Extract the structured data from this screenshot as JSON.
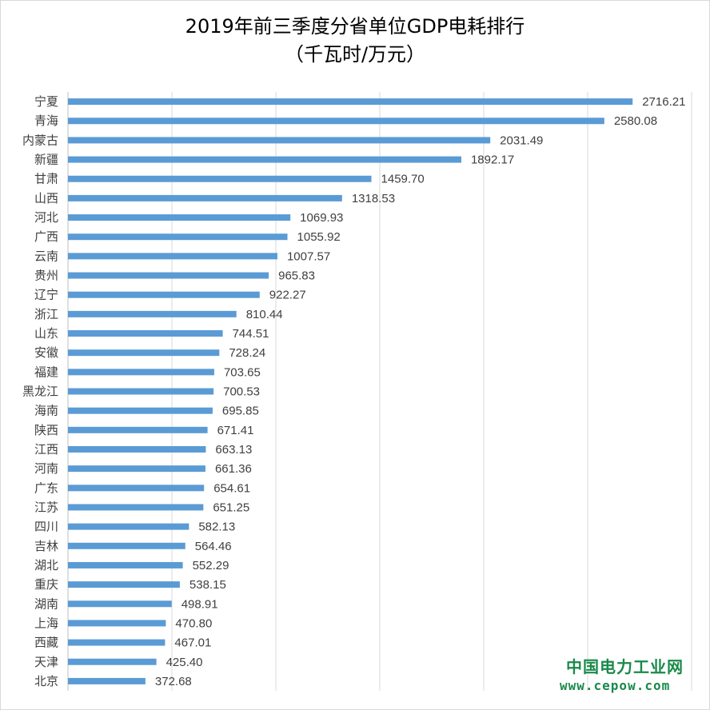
{
  "chart_data": {
    "type": "bar",
    "orientation": "horizontal",
    "title": "2019年前三季度分省单位GDP电耗排行",
    "subtitle": "（千瓦时/万元）",
    "categories": [
      "宁夏",
      "青海",
      "内蒙古",
      "新疆",
      "甘肃",
      "山西",
      "河北",
      "广西",
      "云南",
      "贵州",
      "辽宁",
      "浙江",
      "山东",
      "安徽",
      "福建",
      "黑龙江",
      "海南",
      "陕西",
      "江西",
      "河南",
      "广东",
      "江苏",
      "四川",
      "吉林",
      "湖北",
      "重庆",
      "湖南",
      "上海",
      "西藏",
      "天津",
      "北京"
    ],
    "values": [
      2716.21,
      2580.08,
      2031.49,
      1892.17,
      1459.7,
      1318.53,
      1069.93,
      1055.92,
      1007.57,
      965.83,
      922.27,
      810.44,
      744.51,
      728.24,
      703.65,
      700.53,
      695.85,
      671.41,
      663.13,
      661.36,
      654.61,
      651.25,
      582.13,
      564.46,
      552.29,
      538.15,
      498.91,
      470.8,
      467.01,
      425.4,
      372.68
    ],
    "value_labels": [
      "2716.21",
      "2580.08",
      "2031.49",
      "1892.17",
      "1459.70",
      "1318.53",
      "1069.93",
      "1055.92",
      "1007.57",
      "965.83",
      "922.27",
      "810.44",
      "744.51",
      "728.24",
      "703.65",
      "700.53",
      "695.85",
      "671.41",
      "663.13",
      "661.36",
      "654.61",
      "651.25",
      "582.13",
      "564.46",
      "552.29",
      "538.15",
      "498.91",
      "470.80",
      "467.01",
      "425.40",
      "372.68"
    ],
    "xlim": [
      0,
      3000
    ],
    "x_gridline_step": 500,
    "x_tick_labels_shown": false,
    "grid": true,
    "legend": "none",
    "bar_color": "#5b9bd5",
    "grid_color": "#d9d9d9"
  },
  "watermark": {
    "name": "中国电力工业网",
    "url": "www.cepow.com",
    "color": "#1a8a4a"
  }
}
